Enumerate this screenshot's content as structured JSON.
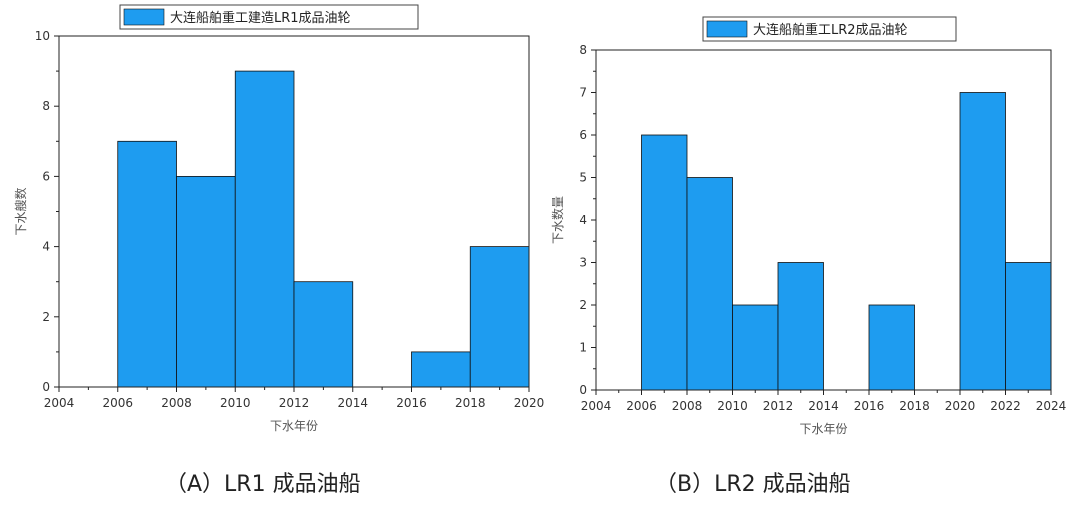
{
  "chart_data": [
    {
      "type": "bar",
      "legend": "大连船舶重工建造LR1成品油轮",
      "legend_placement": "top",
      "xlabel": "下水年份",
      "ylabel": "下水艘数",
      "xlim": [
        2004,
        2020
      ],
      "ylim": [
        0,
        10
      ],
      "xticks": [
        2004,
        2006,
        2008,
        2010,
        2012,
        2014,
        2016,
        2018,
        2020
      ],
      "yticks": [
        0,
        2,
        4,
        6,
        8,
        10
      ],
      "bar_width": 2,
      "x": [
        2007,
        2009,
        2011,
        2013,
        2017,
        2019
      ],
      "values": [
        7,
        6,
        9,
        3,
        1,
        4
      ],
      "color": "#1E9CF0",
      "grid": false,
      "caption": "（A）LR1 成品油船"
    },
    {
      "type": "bar",
      "legend": "大连船舶重工LR2成品油轮",
      "legend_placement": "top",
      "xlabel": "下水年份",
      "ylabel": "下水数量",
      "xlim": [
        2004,
        2024
      ],
      "ylim": [
        0,
        8
      ],
      "xticks": [
        2004,
        2006,
        2008,
        2010,
        2012,
        2014,
        2016,
        2018,
        2020,
        2022,
        2024
      ],
      "yticks": [
        0,
        1,
        2,
        3,
        4,
        5,
        6,
        7,
        8
      ],
      "bar_width": 2,
      "x": [
        2007,
        2009,
        2011,
        2013,
        2017,
        2021,
        2023
      ],
      "values": [
        6,
        5,
        2,
        3,
        2,
        7,
        3
      ],
      "color": "#1E9CF0",
      "grid": false,
      "caption": "（B）LR2 成品油船"
    }
  ]
}
